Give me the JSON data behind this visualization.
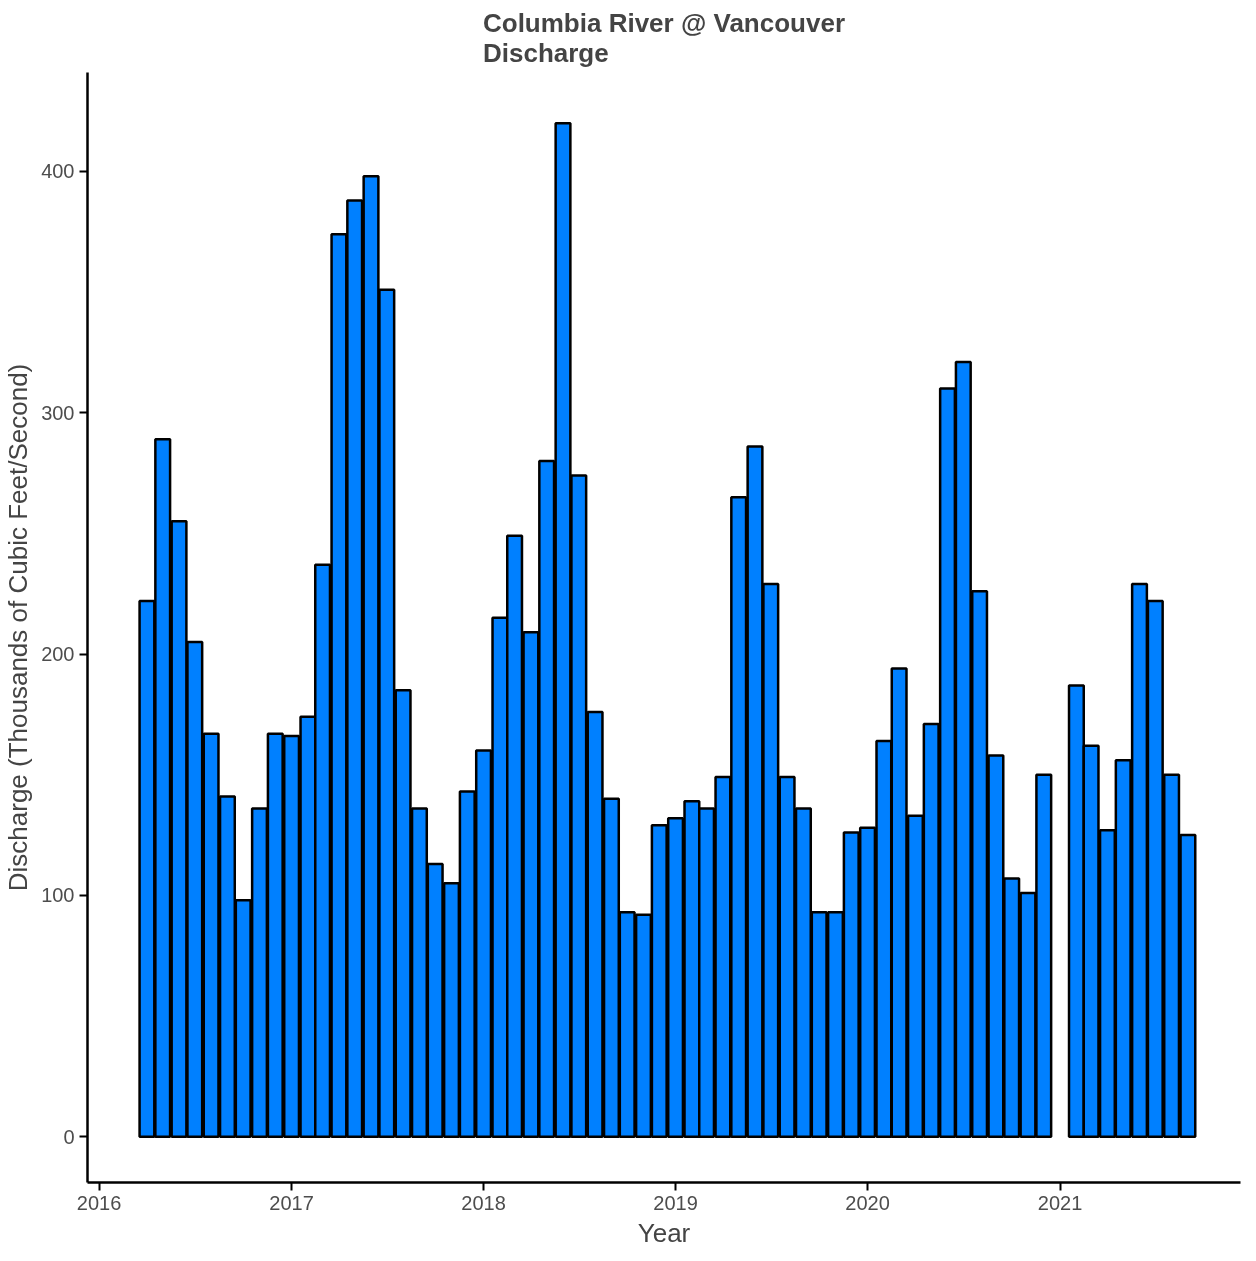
{
  "chart_data": {
    "type": "bar",
    "title": "Columbia River @ Vancouver\nDischarge",
    "xlabel": "Year",
    "ylabel": "Discharge (Thousands of Cubic Feet/Second)",
    "x": [
      "2016-04",
      "2016-05",
      "2016-06",
      "2016-07",
      "2016-08",
      "2016-09",
      "2016-10",
      "2016-11",
      "2016-12",
      "2017-01",
      "2017-02",
      "2017-03",
      "2017-04",
      "2017-05",
      "2017-06",
      "2017-07",
      "2017-08",
      "2017-09",
      "2017-10",
      "2017-11",
      "2017-12",
      "2018-01",
      "2018-02",
      "2018-03",
      "2018-04",
      "2018-05",
      "2018-06",
      "2018-07",
      "2018-08",
      "2018-09",
      "2018-10",
      "2018-11",
      "2018-12",
      "2019-01",
      "2019-02",
      "2019-03",
      "2019-04",
      "2019-05",
      "2019-06",
      "2019-07",
      "2019-08",
      "2019-09",
      "2019-10",
      "2019-11",
      "2019-12",
      "2020-01",
      "2020-02",
      "2020-03",
      "2020-04",
      "2020-05",
      "2020-06",
      "2020-07",
      "2020-08",
      "2020-09",
      "2020-10",
      "2020-11",
      "2020-12",
      "2021-01",
      "2021-02",
      "2021-03",
      "2021-04",
      "2021-05",
      "2021-06",
      "2021-07",
      "2021-08",
      "2021-09"
    ],
    "values": [
      222,
      289,
      255,
      205,
      167,
      141,
      98,
      136,
      167,
      166,
      174,
      237,
      374,
      388,
      398,
      351,
      185,
      136,
      113,
      105,
      143,
      160,
      215,
      249,
      209,
      280,
      420,
      274,
      176,
      140,
      93,
      92,
      129,
      132,
      139,
      136,
      149,
      265,
      286,
      229,
      149,
      136,
      93,
      93,
      126,
      128,
      164,
      194,
      133,
      171,
      310,
      321,
      226,
      158,
      107,
      101,
      150,
      null,
      187,
      162,
      127,
      156,
      229,
      222,
      150,
      125
    ],
    "color": "#0080ff",
    "ylim": [
      -19,
      441
    ],
    "yticks": [
      0,
      100,
      200,
      300,
      400
    ],
    "xlim": [
      "2015-12-10",
      "2021-12-10"
    ],
    "xticks": [
      "2016",
      "2017",
      "2018",
      "2019",
      "2020",
      "2021"
    ],
    "grid": false
  }
}
